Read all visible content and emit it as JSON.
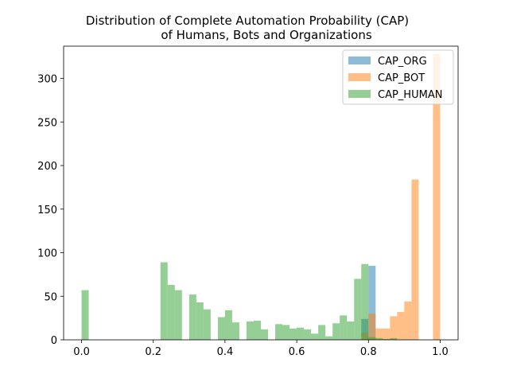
{
  "chart_data": {
    "type": "bar",
    "title_line1": "Distribution of Complete Automation Probability (CAP)",
    "title_line2": "of Humans, Bots and Organizations",
    "xlabel": "",
    "ylabel": "",
    "xlim": [
      -0.05,
      1.05
    ],
    "ylim": [
      0,
      337
    ],
    "bin_width": 0.02,
    "x_ticks": [
      0.0,
      0.2,
      0.4,
      0.6,
      0.8,
      1.0
    ],
    "x_tick_labels": [
      "0.0",
      "0.2",
      "0.4",
      "0.6",
      "0.8",
      "1.0"
    ],
    "y_ticks": [
      0,
      50,
      100,
      150,
      200,
      250,
      300
    ],
    "y_tick_labels": [
      "0",
      "50",
      "100",
      "150",
      "200",
      "250",
      "300"
    ],
    "legend_position": "top-right",
    "series": [
      {
        "name": "CAP_ORG",
        "color": "#1f77b4",
        "alpha": 0.5,
        "bins": [
          {
            "x": 0.78,
            "y": 24
          },
          {
            "x": 0.8,
            "y": 85
          }
        ]
      },
      {
        "name": "CAP_BOT",
        "color": "#ff7f0e",
        "alpha": 0.5,
        "bins": [
          {
            "x": 0.78,
            "y": 8
          },
          {
            "x": 0.8,
            "y": 30
          },
          {
            "x": 0.82,
            "y": 13
          },
          {
            "x": 0.84,
            "y": 13
          },
          {
            "x": 0.86,
            "y": 27
          },
          {
            "x": 0.88,
            "y": 32
          },
          {
            "x": 0.9,
            "y": 44
          },
          {
            "x": 0.92,
            "y": 184
          },
          {
            "x": 0.98,
            "y": 328
          }
        ]
      },
      {
        "name": "CAP_HUMAN",
        "color": "#2ca02c",
        "alpha": 0.5,
        "bins": [
          {
            "x": 0.0,
            "y": 57
          },
          {
            "x": 0.22,
            "y": 89
          },
          {
            "x": 0.24,
            "y": 63
          },
          {
            "x": 0.26,
            "y": 57
          },
          {
            "x": 0.3,
            "y": 52
          },
          {
            "x": 0.32,
            "y": 43
          },
          {
            "x": 0.34,
            "y": 35
          },
          {
            "x": 0.38,
            "y": 26
          },
          {
            "x": 0.4,
            "y": 34
          },
          {
            "x": 0.42,
            "y": 20
          },
          {
            "x": 0.46,
            "y": 21
          },
          {
            "x": 0.48,
            "y": 22
          },
          {
            "x": 0.5,
            "y": 12
          },
          {
            "x": 0.54,
            "y": 18
          },
          {
            "x": 0.56,
            "y": 17
          },
          {
            "x": 0.58,
            "y": 13
          },
          {
            "x": 0.6,
            "y": 14
          },
          {
            "x": 0.62,
            "y": 12
          },
          {
            "x": 0.64,
            "y": 7
          },
          {
            "x": 0.66,
            "y": 17
          },
          {
            "x": 0.68,
            "y": 4
          },
          {
            "x": 0.7,
            "y": 19
          },
          {
            "x": 0.72,
            "y": 28
          },
          {
            "x": 0.74,
            "y": 21
          },
          {
            "x": 0.76,
            "y": 70
          },
          {
            "x": 0.78,
            "y": 87
          },
          {
            "x": 0.8,
            "y": 3
          },
          {
            "x": 0.82,
            "y": 2
          },
          {
            "x": 0.84,
            "y": 1
          },
          {
            "x": 0.86,
            "y": 2
          }
        ]
      }
    ]
  }
}
